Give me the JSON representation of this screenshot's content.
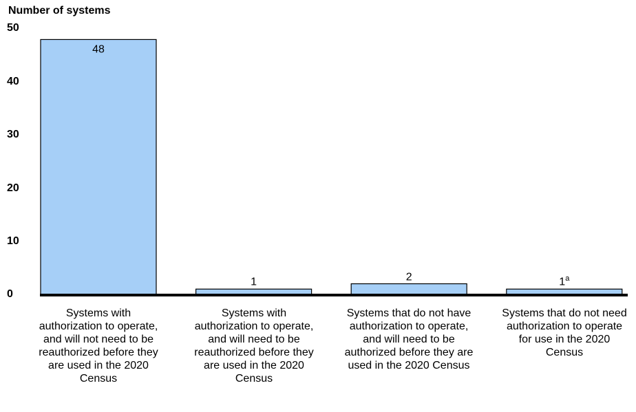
{
  "chart_data": {
    "type": "bar",
    "ylabel": "Number of systems",
    "ylim": [
      0,
      50
    ],
    "yticks": [
      "0",
      "10",
      "20",
      "30",
      "40",
      "50"
    ],
    "categories": [
      "Systems with authorization to operate, and will not need to be reauthorized before they are used in the 2020 Census",
      "Systems with authorization to operate, and will need to be reauthorized before they are used in the 2020 Census",
      "Systems that do not have authorization to operate, and will need to be authorized before they are used in the 2020 Census",
      "Systems that do not need authorization to operate for use in the 2020 Census"
    ],
    "values": [
      48,
      1,
      2,
      1
    ],
    "value_labels": [
      "48",
      "1",
      "2",
      "1"
    ],
    "footnote_marks": [
      "",
      "",
      "",
      "a"
    ],
    "bar_color": "#a6cff7",
    "grid": false
  }
}
